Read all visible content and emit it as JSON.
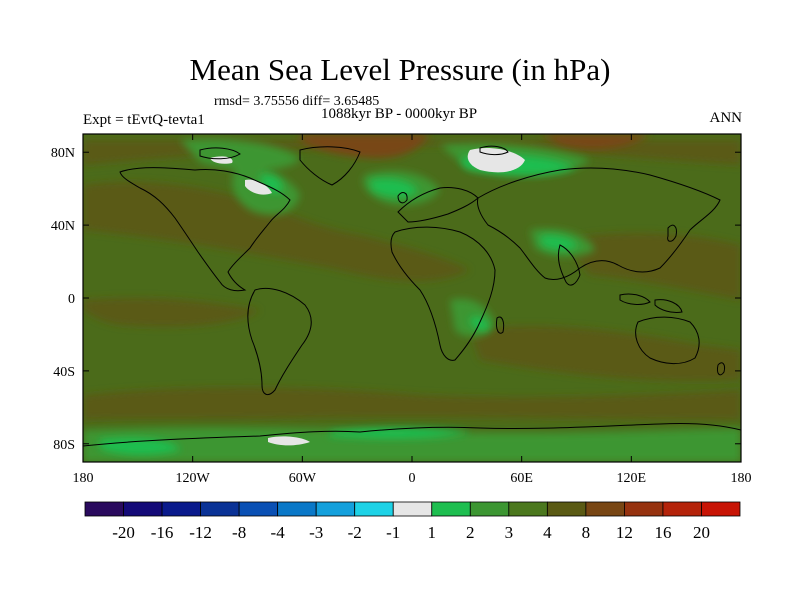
{
  "title": "Mean Sea Level Pressure (in hPa)",
  "stats": "rmsd= 3.75556 diff= 3.65485",
  "period": "1088kyr BP - 0000kyr BP",
  "experiment": "Expt = tEvtQ-tevta1",
  "season": "ANN",
  "map": {
    "projection": "cylindrical-equidistant",
    "lon_range": [
      -180,
      180
    ],
    "lat_range": [
      -90,
      90
    ],
    "x_ticks": [
      {
        "value": -180,
        "label": "180"
      },
      {
        "value": -120,
        "label": "120W"
      },
      {
        "value": -60,
        "label": "60W"
      },
      {
        "value": 0,
        "label": "0"
      },
      {
        "value": 60,
        "label": "60E"
      },
      {
        "value": 120,
        "label": "120E"
      },
      {
        "value": 180,
        "label": "180"
      }
    ],
    "y_ticks": [
      {
        "value": 80,
        "label": "80N"
      },
      {
        "value": 40,
        "label": "40N"
      },
      {
        "value": 0,
        "label": "0"
      },
      {
        "value": -40,
        "label": "40S"
      },
      {
        "value": -80,
        "label": "80S"
      }
    ],
    "background_level_color": "#4b6b1a"
  },
  "colorbar": {
    "colors": [
      "#2a0a5e",
      "#140a78",
      "#0a1a8c",
      "#0a3296",
      "#0a50b4",
      "#0a78c8",
      "#14a0dc",
      "#1ed2e6",
      "#e6e6e6",
      "#1ebe50",
      "#3c9632",
      "#4b781e",
      "#5a5a14",
      "#784614",
      "#96320f",
      "#b4230a",
      "#c81405"
    ],
    "labels": [
      "-20",
      "-16",
      "-12",
      "-8",
      "-4",
      "-3",
      "-2",
      "-1",
      "1",
      "2",
      "3",
      "4",
      "8",
      "12",
      "16",
      "20"
    ]
  }
}
